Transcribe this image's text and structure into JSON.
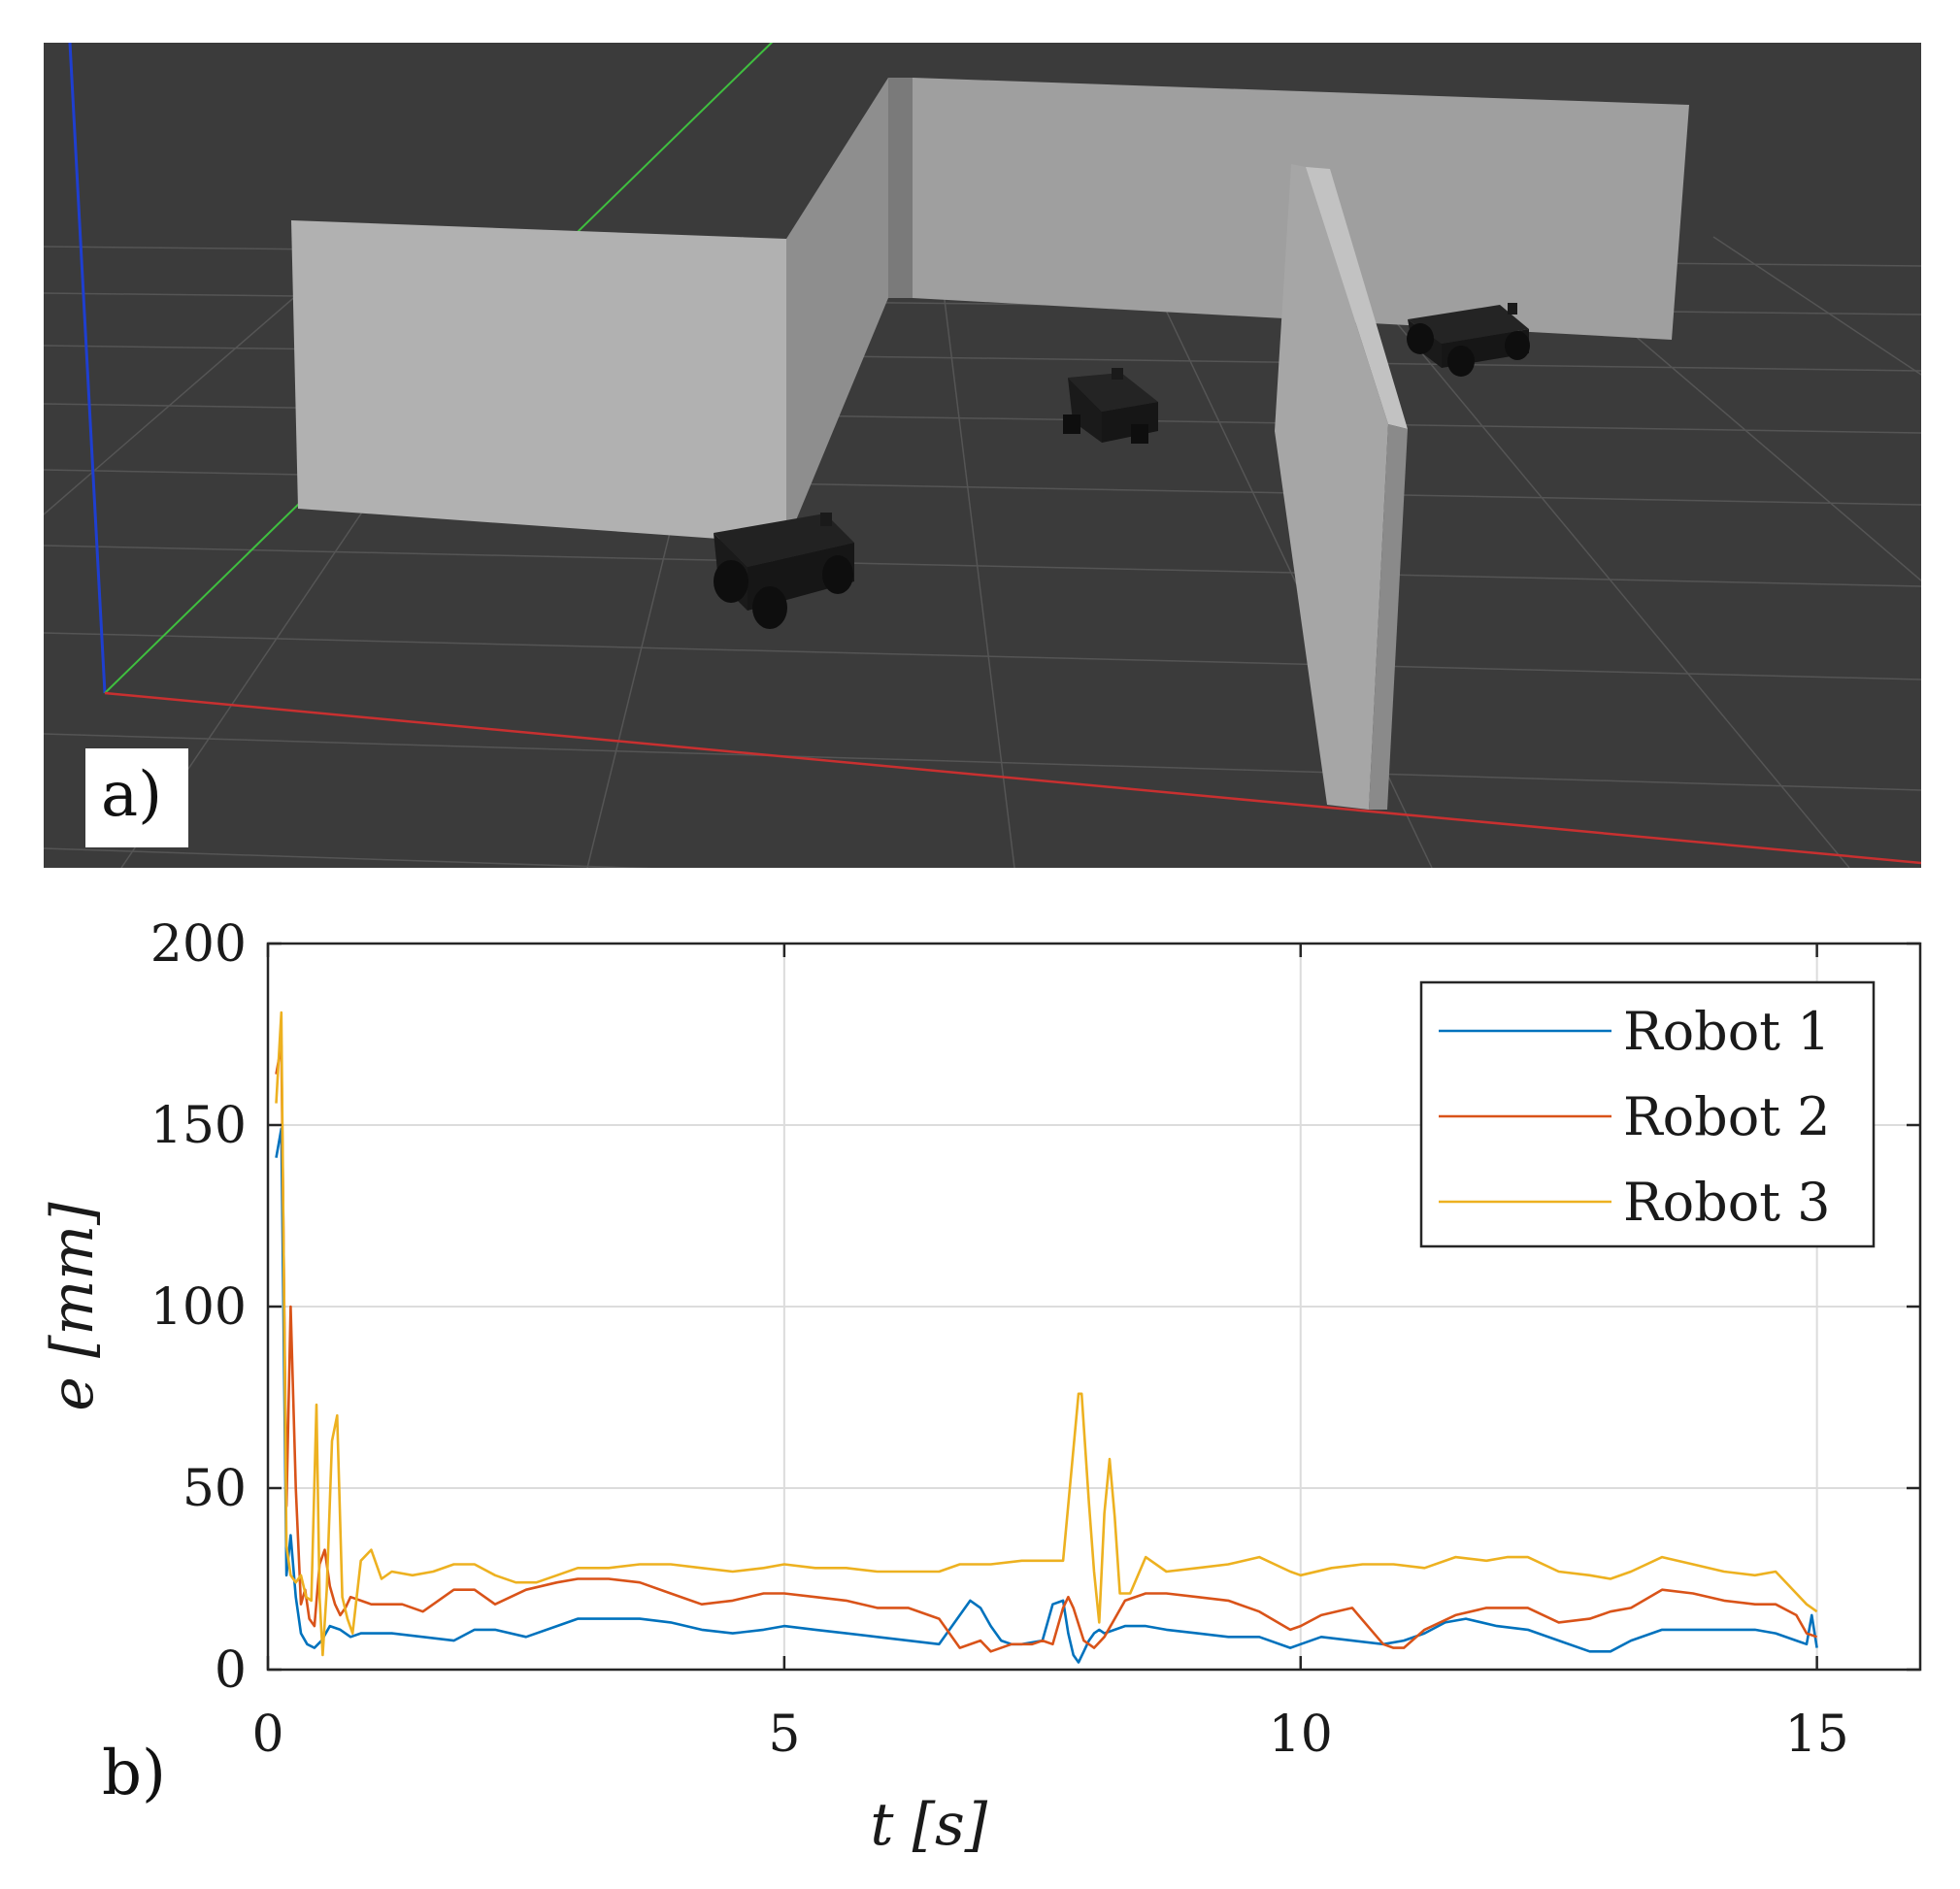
{
  "panel_a": {
    "label": "a)"
  },
  "panel_b": {
    "label": "b)"
  },
  "chart_data": {
    "type": "line",
    "xlabel": "t [s]",
    "ylabel": "e [mm]",
    "xlim": [
      0,
      16
    ],
    "ylim": [
      0,
      200
    ],
    "xticks": [
      0,
      5,
      10,
      15
    ],
    "yticks": [
      0,
      50,
      100,
      150,
      200
    ],
    "grid": true,
    "legend_position": "top-right",
    "series": [
      {
        "name": "Robot 1",
        "color": "#0072BD",
        "x": [
          0.08,
          0.13,
          0.18,
          0.22,
          0.27,
          0.32,
          0.38,
          0.45,
          0.52,
          0.6,
          0.7,
          0.8,
          0.9,
          1.0,
          1.2,
          1.5,
          1.8,
          2.0,
          2.2,
          2.5,
          2.8,
          3.0,
          3.3,
          3.6,
          3.9,
          4.2,
          4.5,
          4.8,
          5.0,
          5.3,
          5.6,
          5.9,
          6.2,
          6.5,
          6.7,
          6.8,
          6.9,
          7.0,
          7.1,
          7.2,
          7.3,
          7.5,
          7.6,
          7.7,
          7.75,
          7.8,
          7.85,
          7.9,
          7.95,
          8.0,
          8.05,
          8.1,
          8.2,
          8.3,
          8.5,
          8.7,
          9.0,
          9.3,
          9.6,
          9.9,
          10.0,
          10.2,
          10.5,
          10.8,
          11.0,
          11.2,
          11.4,
          11.6,
          11.9,
          12.2,
          12.5,
          12.8,
          13.0,
          13.2,
          13.5,
          13.8,
          14.1,
          14.4,
          14.6,
          14.8,
          14.9,
          14.95,
          15.0
        ],
        "y": [
          141,
          149,
          26,
          37,
          20,
          10,
          7,
          6,
          8,
          12,
          11,
          9,
          10,
          10,
          10,
          9,
          8,
          11,
          11,
          9,
          12,
          14,
          14,
          14,
          13,
          11,
          10,
          11,
          12,
          11,
          10,
          9,
          8,
          7,
          15,
          19,
          17,
          12,
          8,
          7,
          7,
          8,
          18,
          19,
          10,
          4,
          2,
          5,
          8,
          10,
          11,
          10,
          11,
          12,
          12,
          11,
          10,
          9,
          9,
          6,
          7,
          9,
          8,
          7,
          8,
          10,
          13,
          14,
          12,
          11,
          8,
          5,
          5,
          8,
          11,
          11,
          11,
          11,
          10,
          8,
          7,
          15,
          6
        ]
      },
      {
        "name": "Robot 2",
        "color": "#D95319",
        "x": [
          0.08,
          0.13,
          0.18,
          0.22,
          0.27,
          0.32,
          0.36,
          0.4,
          0.45,
          0.5,
          0.55,
          0.6,
          0.65,
          0.7,
          0.75,
          0.8,
          0.9,
          1.0,
          1.3,
          1.5,
          1.8,
          2.0,
          2.2,
          2.5,
          2.8,
          3.0,
          3.3,
          3.6,
          3.9,
          4.2,
          4.5,
          4.8,
          5.0,
          5.3,
          5.6,
          5.9,
          6.2,
          6.5,
          6.7,
          6.9,
          7.0,
          7.2,
          7.4,
          7.5,
          7.6,
          7.7,
          7.75,
          7.8,
          7.9,
          8.0,
          8.1,
          8.3,
          8.5,
          8.7,
          9.0,
          9.3,
          9.6,
          9.9,
          10.0,
          10.2,
          10.5,
          10.8,
          10.9,
          11.0,
          11.2,
          11.5,
          11.8,
          12.0,
          12.2,
          12.5,
          12.8,
          13.0,
          13.2,
          13.5,
          13.8,
          14.1,
          14.4,
          14.6,
          14.8,
          14.9,
          15.0
        ],
        "y": [
          164,
          172,
          45,
          100,
          50,
          18,
          22,
          14,
          12,
          29,
          33,
          23,
          18,
          15,
          17,
          20,
          19,
          18,
          18,
          16,
          22,
          22,
          18,
          22,
          24,
          25,
          25,
          24,
          21,
          18,
          19,
          21,
          21,
          20,
          19,
          17,
          17,
          14,
          6,
          8,
          5,
          7,
          7,
          8,
          7,
          17,
          20,
          17,
          8,
          6,
          9,
          19,
          21,
          21,
          20,
          19,
          16,
          11,
          12,
          15,
          17,
          7,
          6,
          6,
          11,
          15,
          17,
          17,
          17,
          13,
          14,
          16,
          17,
          22,
          21,
          19,
          18,
          18,
          15,
          10,
          9
        ]
      },
      {
        "name": "Robot 3",
        "color": "#EDB120",
        "x": [
          0.08,
          0.13,
          0.18,
          0.22,
          0.27,
          0.32,
          0.37,
          0.42,
          0.47,
          0.5,
          0.53,
          0.57,
          0.62,
          0.67,
          0.72,
          0.77,
          0.82,
          0.9,
          1.0,
          1.1,
          1.2,
          1.4,
          1.6,
          1.8,
          2.0,
          2.2,
          2.4,
          2.6,
          2.8,
          3.0,
          3.3,
          3.6,
          3.9,
          4.2,
          4.5,
          4.8,
          5.0,
          5.3,
          5.6,
          5.9,
          6.2,
          6.5,
          6.7,
          7.0,
          7.3,
          7.5,
          7.7,
          7.85,
          7.88,
          7.95,
          8.0,
          8.05,
          8.1,
          8.15,
          8.2,
          8.25,
          8.3,
          8.35,
          8.5,
          8.7,
          9.0,
          9.3,
          9.6,
          9.9,
          10.0,
          10.3,
          10.6,
          10.9,
          11.2,
          11.5,
          11.8,
          12.0,
          12.2,
          12.5,
          12.8,
          13.0,
          13.2,
          13.5,
          13.8,
          14.1,
          14.4,
          14.6,
          14.8,
          14.9,
          15.0
        ],
        "y": [
          156,
          181,
          34,
          26,
          24,
          26,
          20,
          19,
          73,
          20,
          4,
          22,
          63,
          70,
          20,
          14,
          10,
          30,
          33,
          25,
          27,
          26,
          27,
          29,
          29,
          26,
          24,
          24,
          26,
          28,
          28,
          29,
          29,
          28,
          27,
          28,
          29,
          28,
          28,
          27,
          27,
          27,
          29,
          29,
          30,
          30,
          30,
          76,
          76,
          46,
          27,
          13,
          43,
          58,
          42,
          21,
          21,
          21,
          31,
          27,
          28,
          29,
          31,
          27,
          26,
          28,
          29,
          29,
          28,
          31,
          30,
          31,
          31,
          27,
          26,
          25,
          27,
          31,
          29,
          27,
          26,
          27,
          21,
          18,
          16
        ]
      }
    ]
  }
}
